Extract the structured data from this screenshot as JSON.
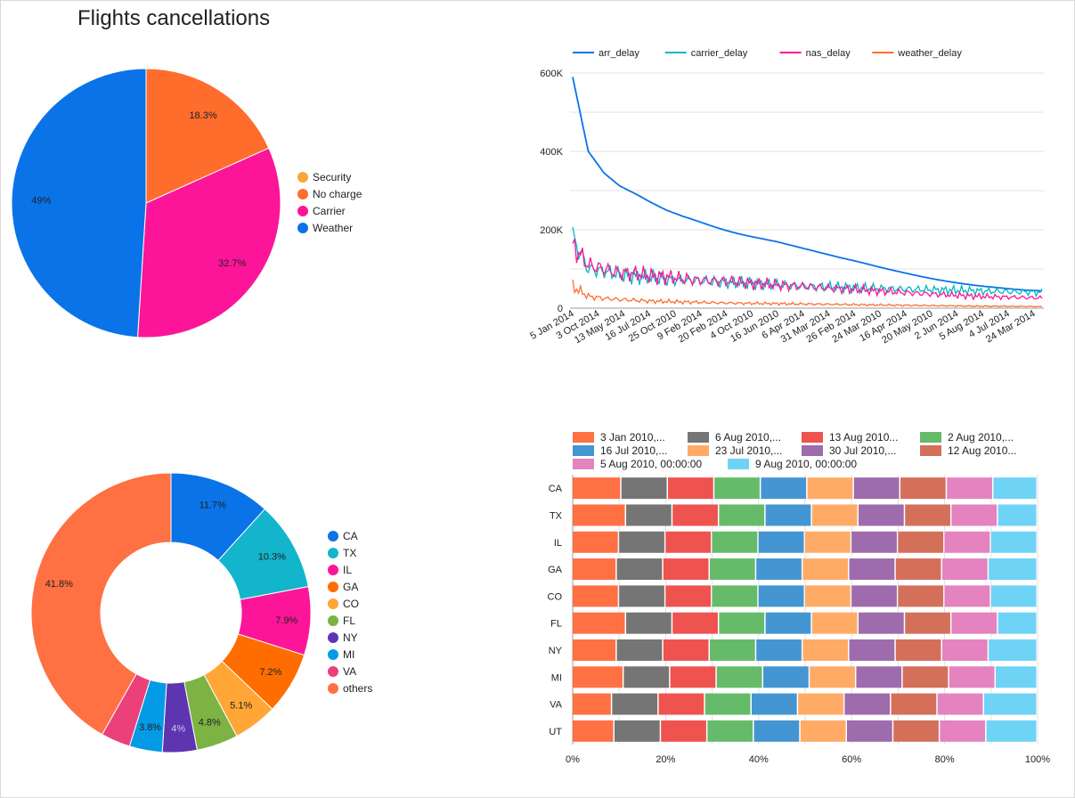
{
  "page": {
    "title": "Flights cancellations"
  },
  "chart_data": [
    {
      "type": "pie",
      "title": "Flights cancellations",
      "legend_position": "right",
      "labels": [
        "Security",
        "No charge",
        "Carrier",
        "Weather"
      ],
      "values": [
        0.0,
        18.3,
        32.7,
        49.0
      ],
      "value_labels": [
        "",
        "18.3%",
        "32.7%",
        "49%"
      ],
      "colors": [
        "#f6a736",
        "#ff6d2d",
        "#fc1598",
        "#0b73e8"
      ]
    },
    {
      "type": "line",
      "legend_position": "top",
      "grid": true,
      "ylim": [
        0,
        600000
      ],
      "y_ticks": [
        "0",
        "200K",
        "400K",
        "600K"
      ],
      "x_tick_labels": [
        "5 Jan 2014",
        "3 Oct 2014",
        "13 May 2014",
        "16 Jul 2014",
        "25 Oct 2010",
        "9 Feb 2014",
        "20 Feb 2014",
        "4 Oct 2010",
        "16 Jun 2010",
        "6 Apr 2014",
        "31 Mar 2014",
        "26 Feb 2014",
        "24 Mar 2010",
        "16 Apr 2014",
        "20 May 2010",
        "2 Jun 2014",
        "5 Aug 2014",
        "4 Jul 2014",
        "24 Mar 2014"
      ],
      "series": [
        {
          "name": "arr_delay",
          "color": "#0b73e8",
          "values": [
            590000,
            400000,
            345000,
            312000,
            292000,
            270000,
            250000,
            235000,
            222000,
            208000,
            196000,
            186000,
            178000,
            170000,
            160000,
            150000,
            140000,
            130000,
            121000,
            111000,
            101000,
            92000,
            83000,
            75000,
            68000,
            62000,
            57000,
            53000,
            49000,
            46000,
            44000
          ]
        },
        {
          "name": "carrier_delay",
          "color": "#00b7c6",
          "values": [
            180000,
            100000,
            95000,
            85000,
            82000,
            78000,
            74000,
            72000,
            70000,
            68000,
            66000,
            64000,
            62000,
            60000,
            58000,
            56000,
            55000,
            54000,
            52000,
            51000,
            50000,
            49000,
            48000,
            47000,
            46000,
            45000,
            44000,
            43000,
            42000,
            41000,
            40000
          ]
        },
        {
          "name": "nas_delay",
          "color": "#fc1598",
          "values": [
            160000,
            110000,
            100000,
            90000,
            88000,
            82000,
            80000,
            75000,
            72000,
            70000,
            68000,
            65000,
            62000,
            60000,
            57000,
            55000,
            52000,
            50000,
            48000,
            45000,
            43000,
            40000,
            38000,
            36000,
            34000,
            32000,
            30000,
            29000,
            28000,
            27000,
            26000
          ]
        },
        {
          "name": "weather_delay",
          "color": "#ff6d2d",
          "values": [
            55000,
            30000,
            25000,
            22000,
            20000,
            18000,
            17000,
            16000,
            15000,
            14000,
            13000,
            12500,
            12000,
            11500,
            11000,
            10500,
            10000,
            9500,
            9000,
            8500,
            8000,
            7500,
            7000,
            6500,
            6000,
            5500,
            5000,
            5000,
            4500,
            4500,
            4000
          ]
        }
      ]
    },
    {
      "type": "pie",
      "donut": true,
      "legend_position": "right",
      "labels": [
        "CA",
        "TX",
        "IL",
        "GA",
        "CO",
        "FL",
        "NY",
        "MI",
        "VA",
        "others"
      ],
      "values": [
        11.7,
        10.3,
        7.9,
        7.2,
        5.1,
        4.8,
        4.0,
        3.8,
        3.4,
        41.8
      ],
      "value_labels": [
        "11.7%",
        "10.3%",
        "7.9%",
        "7.2%",
        "5.1%",
        "4.8%",
        "4%",
        "3.8%",
        "",
        "41.8%"
      ],
      "colors": [
        "#0b73e8",
        "#12b5cb",
        "#fc1598",
        "#ff6d01",
        "#ffa636",
        "#7cb342",
        "#5e35b1",
        "#039be5",
        "#ec407a",
        "#ff7043"
      ]
    },
    {
      "type": "bar",
      "orientation": "horizontal",
      "stacked": "percent",
      "legend_position": "top",
      "grid": true,
      "xlim": [
        0,
        100
      ],
      "x_ticks": [
        "0%",
        "20%",
        "40%",
        "60%",
        "80%",
        "100%"
      ],
      "categories": [
        "CA",
        "TX",
        "IL",
        "GA",
        "CO",
        "FL",
        "NY",
        "MI",
        "VA",
        "UT"
      ],
      "series": [
        {
          "name": "3 Jan 2010,...",
          "color": "#ff7043",
          "values": [
            10.5,
            11.5,
            10.0,
            9.5,
            10.0,
            11.5,
            9.5,
            11.0,
            8.5,
            9.0
          ]
        },
        {
          "name": "6 Aug 2010,...",
          "color": "#757575",
          "values": [
            10.0,
            10.0,
            10.0,
            10.0,
            10.0,
            10.0,
            10.0,
            10.0,
            10.0,
            10.0
          ]
        },
        {
          "name": "13 Aug 2010...",
          "color": "#ef5350",
          "values": [
            10.0,
            10.0,
            10.0,
            10.0,
            10.0,
            10.0,
            10.0,
            10.0,
            10.0,
            10.0
          ]
        },
        {
          "name": "2 Aug 2010,...",
          "color": "#66bb6a",
          "values": [
            10.0,
            10.0,
            10.0,
            10.0,
            10.0,
            10.0,
            10.0,
            10.0,
            10.0,
            10.0
          ]
        },
        {
          "name": "16 Jul 2010,...",
          "color": "#4396d2",
          "values": [
            10.0,
            10.0,
            10.0,
            10.0,
            10.0,
            10.0,
            10.0,
            10.0,
            10.0,
            10.0
          ]
        },
        {
          "name": "23 Jul 2010,...",
          "color": "#ffab66",
          "values": [
            10.0,
            10.0,
            10.0,
            10.0,
            10.0,
            10.0,
            10.0,
            10.0,
            10.0,
            10.0
          ]
        },
        {
          "name": "30 Jul 2010,...",
          "color": "#9e6bad",
          "values": [
            10.0,
            10.0,
            10.0,
            10.0,
            10.0,
            10.0,
            10.0,
            10.0,
            10.0,
            10.0
          ]
        },
        {
          "name": "12 Aug 2010...",
          "color": "#d4705a",
          "values": [
            10.0,
            10.0,
            10.0,
            10.0,
            10.0,
            10.0,
            10.0,
            10.0,
            10.0,
            10.0
          ]
        },
        {
          "name": "5 Aug 2010, 00:00:00",
          "color": "#e483bf",
          "values": [
            10.0,
            10.0,
            10.0,
            10.0,
            10.0,
            10.0,
            10.0,
            10.0,
            10.0,
            10.0
          ]
        },
        {
          "name": "9 Aug 2010, 00:00:00",
          "color": "#6fd3f6",
          "values": [
            9.5,
            8.5,
            10.0,
            10.5,
            10.0,
            8.5,
            10.5,
            9.0,
            11.5,
            11.0
          ]
        }
      ]
    }
  ]
}
